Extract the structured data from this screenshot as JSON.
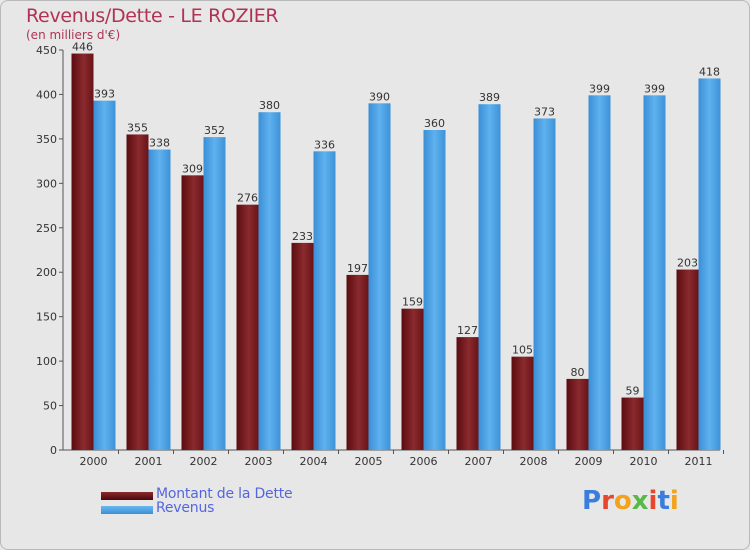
{
  "title": "Revenus/Dette - LE ROZIER",
  "subtitle": "(en milliers d'€)",
  "logo": {
    "text": "Proxiti",
    "letter_colors": [
      "#3b7ddd",
      "#e8452c",
      "#f3a21b",
      "#58b947",
      "#e8452c",
      "#3b7ddd",
      "#f3a21b"
    ]
  },
  "colors": {
    "dette": "#7a1a1e",
    "revenus": "#4da3e6",
    "axis_text": "#333333",
    "title": "#b03355",
    "legend_text": "#5566dd"
  },
  "chart_data": {
    "type": "bar",
    "title": "Revenus/Dette - LE ROZIER",
    "subtitle": "(en milliers d'€)",
    "categories": [
      "2000",
      "2001",
      "2002",
      "2003",
      "2004",
      "2005",
      "2006",
      "2007",
      "2008",
      "2009",
      "2010",
      "2011"
    ],
    "series": [
      {
        "name": "Montant de la Dette",
        "values": [
          446,
          355,
          309,
          276,
          233,
          197,
          159,
          127,
          105,
          80,
          59,
          203
        ]
      },
      {
        "name": "Revenus",
        "values": [
          393,
          338,
          352,
          380,
          336,
          390,
          360,
          389,
          373,
          399,
          399,
          418
        ]
      }
    ],
    "ylim": [
      0,
      450
    ],
    "yticks": [
      0,
      50,
      100,
      150,
      200,
      250,
      300,
      350,
      400,
      450
    ],
    "grid": false,
    "legend_position": "bottom-left"
  }
}
